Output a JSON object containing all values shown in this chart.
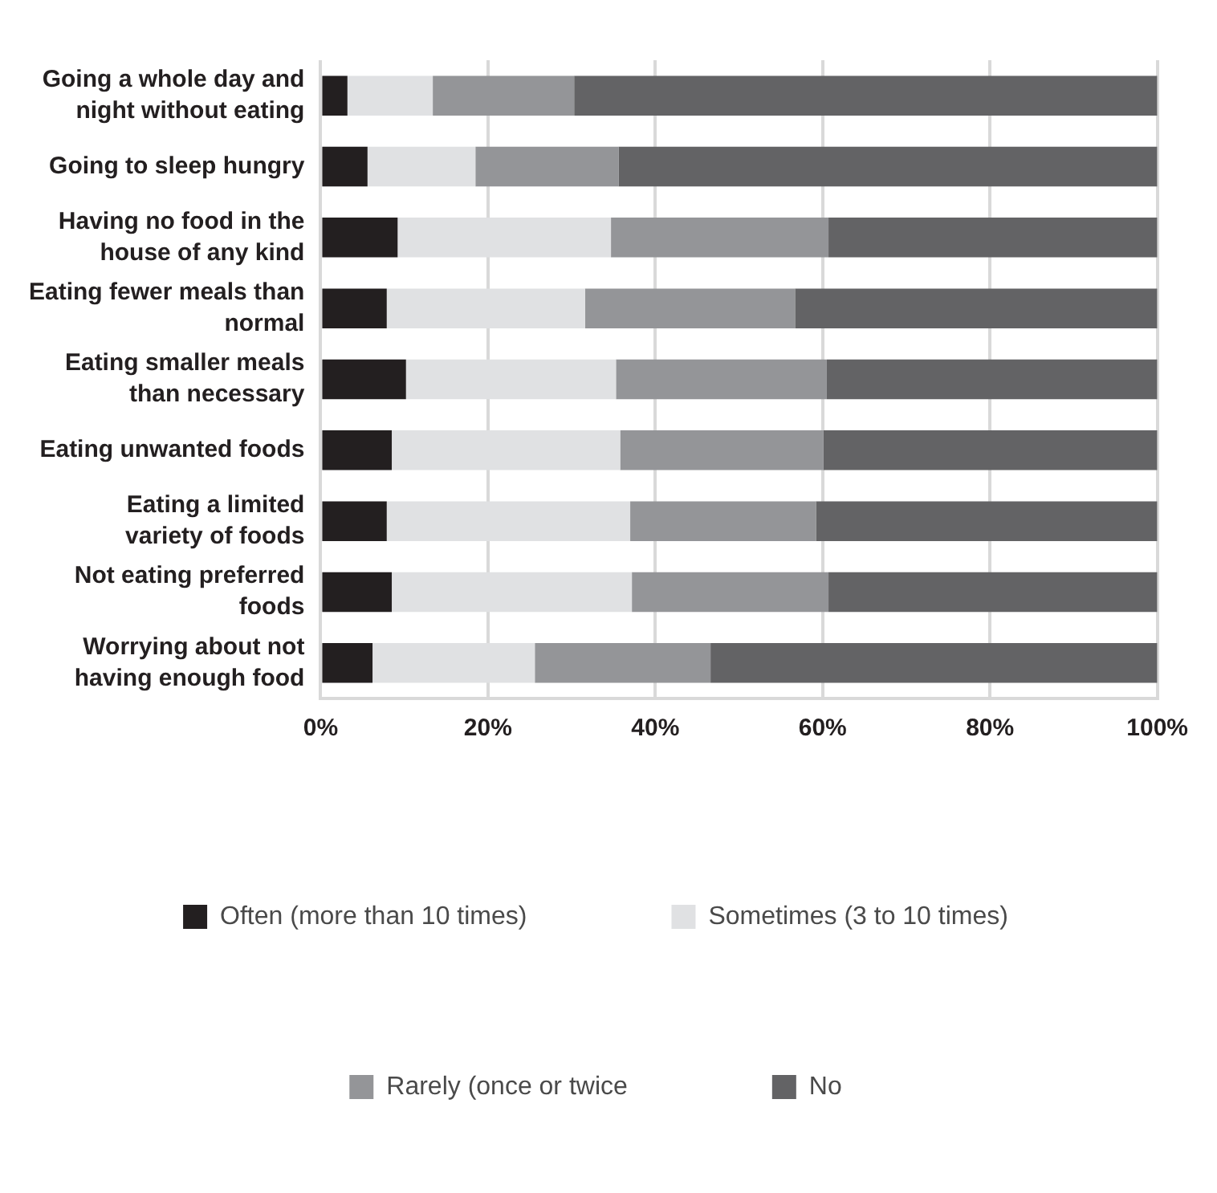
{
  "chart_data": {
    "type": "bar",
    "orientation": "horizontal",
    "stacked": true,
    "categories": [
      "Going a whole day and night without eating",
      "Going to sleep hungry",
      "Having no food in the house of any kind",
      "Eating fewer meals than normal",
      "Eating smaller meals than necessary",
      "Eating unwanted foods",
      "Eating a limited variety of foods",
      "Not eating preferred foods",
      "Worrying about not having enough food"
    ],
    "series": [
      {
        "name": "Often (more than 10 times)",
        "color": "#231f20",
        "values": [
          3.2,
          5.6,
          9.2,
          7.9,
          10.2,
          8.5,
          7.9,
          8.5,
          6.2
        ]
      },
      {
        "name": "Sometimes (3 to 10 times)",
        "color": "#e0e1e3",
        "values": [
          10.2,
          12.9,
          25.5,
          23.7,
          25.1,
          27.3,
          29.1,
          28.7,
          19.4
        ]
      },
      {
        "name": "Rarely (once or twice",
        "color": "#949598",
        "values": [
          16.9,
          17.1,
          26.0,
          25.1,
          25.2,
          24.3,
          22.2,
          23.5,
          21.0
        ]
      },
      {
        "name": "No",
        "color": "#636365",
        "values": [
          69.7,
          64.4,
          39.3,
          43.3,
          39.5,
          39.9,
          40.8,
          39.3,
          53.4
        ]
      }
    ],
    "xlim": [
      0,
      100
    ],
    "xticks": [
      {
        "value": 0,
        "label": "0%"
      },
      {
        "value": 20,
        "label": "20%"
      },
      {
        "value": 40,
        "label": "40%"
      },
      {
        "value": 60,
        "label": "60%"
      },
      {
        "value": 80,
        "label": "80%"
      },
      {
        "value": 100,
        "label": "100%"
      }
    ],
    "grid": "x",
    "legend": "bottom"
  }
}
